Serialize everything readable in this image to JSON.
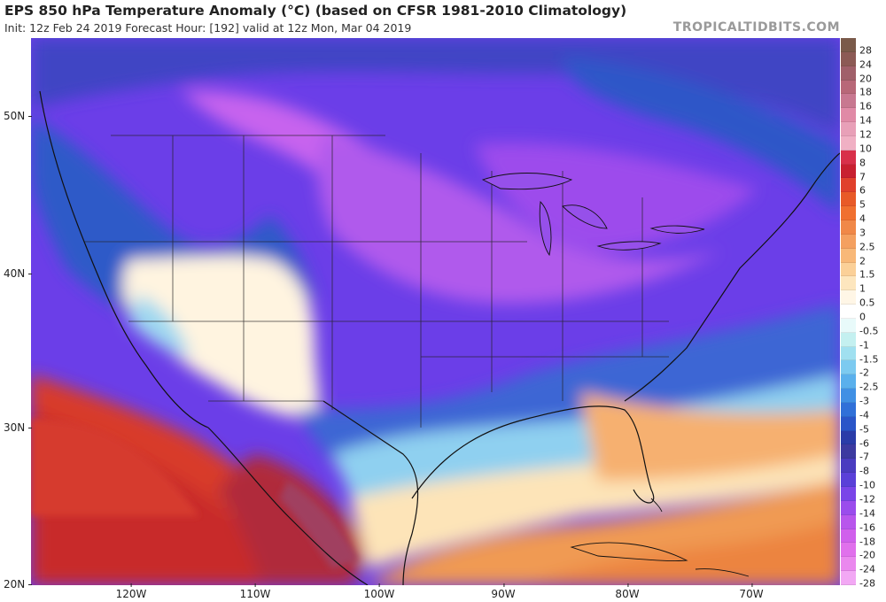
{
  "header": {
    "title": "EPS 850 hPa Temperature Anomaly (°C) (based on CFSR 1981-2010 Climatology)",
    "subtitle": "Init: 12z Feb 24 2019   Forecast Hour: [192]   valid at 12z Mon, Mar 04 2019",
    "brand": "TROPICALTIDBITS.COM"
  },
  "axes": {
    "lat_labels": [
      "50N",
      "40N",
      "30N",
      "20N"
    ],
    "lon_labels": [
      "120W",
      "110W",
      "100W",
      "90W",
      "80W",
      "70W"
    ]
  },
  "colorbar": {
    "labels": [
      "28",
      "24",
      "20",
      "18",
      "16",
      "14",
      "12",
      "10",
      "8",
      "7",
      "6",
      "5",
      "4",
      "3",
      "2.5",
      "2",
      "1.5",
      "1",
      "0.5",
      "0",
      "-0.5",
      "-1",
      "-1.5",
      "-2",
      "-2.5",
      "-3",
      "-4",
      "-5",
      "-6",
      "-7",
      "-8",
      "-10",
      "-12",
      "-14",
      "-16",
      "-18",
      "-20",
      "-24",
      "-28"
    ],
    "colors": [
      "#7a5a4a",
      "#8c5a55",
      "#a0606a",
      "#b86878",
      "#c87890",
      "#e08aa6",
      "#e8a0b8",
      "#f0b0c4",
      "#d8304a",
      "#c82030",
      "#e0402c",
      "#e85a28",
      "#f07030",
      "#f08848",
      "#f4a060",
      "#f8b878",
      "#fbd098",
      "#fde6be",
      "#fff6e6",
      "#ffffff",
      "#e8fafa",
      "#c4f0f0",
      "#a0e0f0",
      "#7ccaf0",
      "#5ab0ec",
      "#4090e4",
      "#3070d8",
      "#2a55c8",
      "#2a3ca8",
      "#3c3aa0",
      "#4a3cc0",
      "#5a40d8",
      "#7a45e8",
      "#9a4cec",
      "#b856ec",
      "#d060ec",
      "#e070ec",
      "#ea88ee",
      "#f2a8f4"
    ]
  },
  "colors": {
    "cold_core": "#a33ce8",
    "cold_edge": "#2f4fc4",
    "warm": "#e04a2a",
    "neutral": "#fff6e6"
  }
}
